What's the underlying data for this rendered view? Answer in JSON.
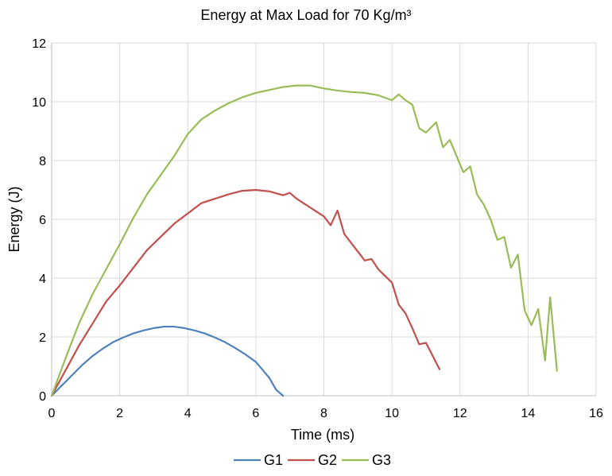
{
  "chart_data": {
    "type": "line",
    "title": "Energy at Max Load for 70 Kg/m³",
    "xlabel": "Time (ms)",
    "ylabel": "Energy (J)",
    "xlim": [
      0,
      16
    ],
    "ylim": [
      0,
      12
    ],
    "x_ticks": [
      0,
      2,
      4,
      6,
      8,
      10,
      12,
      14,
      16
    ],
    "y_ticks": [
      0,
      2,
      4,
      6,
      8,
      10,
      12
    ],
    "grid": true,
    "legend_position": "bottom",
    "series": [
      {
        "name": "G1",
        "color": "#4f81bd",
        "points": [
          [
            0.0,
            0.0
          ],
          [
            0.3,
            0.35
          ],
          [
            0.6,
            0.7
          ],
          [
            0.9,
            1.05
          ],
          [
            1.2,
            1.35
          ],
          [
            1.5,
            1.6
          ],
          [
            1.8,
            1.82
          ],
          [
            2.1,
            1.98
          ],
          [
            2.4,
            2.12
          ],
          [
            2.7,
            2.22
          ],
          [
            3.0,
            2.3
          ],
          [
            3.3,
            2.35
          ],
          [
            3.6,
            2.35
          ],
          [
            3.9,
            2.3
          ],
          [
            4.2,
            2.22
          ],
          [
            4.5,
            2.12
          ],
          [
            4.8,
            1.98
          ],
          [
            5.1,
            1.82
          ],
          [
            5.4,
            1.62
          ],
          [
            5.7,
            1.4
          ],
          [
            6.0,
            1.15
          ],
          [
            6.2,
            0.88
          ],
          [
            6.4,
            0.6
          ],
          [
            6.6,
            0.2
          ],
          [
            6.8,
            0.0
          ]
        ]
      },
      {
        "name": "G2",
        "color": "#c0504d",
        "points": [
          [
            0.0,
            0.0
          ],
          [
            0.4,
            0.85
          ],
          [
            0.8,
            1.7
          ],
          [
            1.2,
            2.45
          ],
          [
            1.6,
            3.2
          ],
          [
            2.0,
            3.75
          ],
          [
            2.4,
            4.35
          ],
          [
            2.8,
            4.95
          ],
          [
            3.2,
            5.4
          ],
          [
            3.6,
            5.85
          ],
          [
            4.0,
            6.2
          ],
          [
            4.4,
            6.55
          ],
          [
            4.8,
            6.7
          ],
          [
            5.2,
            6.85
          ],
          [
            5.6,
            6.97
          ],
          [
            6.0,
            7.0
          ],
          [
            6.4,
            6.95
          ],
          [
            6.8,
            6.82
          ],
          [
            7.0,
            6.9
          ],
          [
            7.2,
            6.7
          ],
          [
            7.6,
            6.4
          ],
          [
            8.0,
            6.1
          ],
          [
            8.2,
            5.8
          ],
          [
            8.4,
            6.3
          ],
          [
            8.6,
            5.5
          ],
          [
            9.0,
            4.9
          ],
          [
            9.2,
            4.6
          ],
          [
            9.4,
            4.65
          ],
          [
            9.6,
            4.3
          ],
          [
            10.0,
            3.85
          ],
          [
            10.2,
            3.1
          ],
          [
            10.4,
            2.8
          ],
          [
            10.6,
            2.3
          ],
          [
            10.8,
            1.75
          ],
          [
            11.0,
            1.8
          ],
          [
            11.4,
            0.9
          ]
        ]
      },
      {
        "name": "G3",
        "color": "#9bbb59",
        "points": [
          [
            0.0,
            0.0
          ],
          [
            0.4,
            1.25
          ],
          [
            0.8,
            2.45
          ],
          [
            1.2,
            3.45
          ],
          [
            1.6,
            4.3
          ],
          [
            2.0,
            5.15
          ],
          [
            2.4,
            6.05
          ],
          [
            2.8,
            6.85
          ],
          [
            3.2,
            7.5
          ],
          [
            3.6,
            8.15
          ],
          [
            4.0,
            8.9
          ],
          [
            4.4,
            9.4
          ],
          [
            4.8,
            9.7
          ],
          [
            5.2,
            9.95
          ],
          [
            5.6,
            10.15
          ],
          [
            6.0,
            10.3
          ],
          [
            6.4,
            10.4
          ],
          [
            6.8,
            10.5
          ],
          [
            7.2,
            10.55
          ],
          [
            7.6,
            10.55
          ],
          [
            8.0,
            10.45
          ],
          [
            8.4,
            10.38
          ],
          [
            8.8,
            10.33
          ],
          [
            9.2,
            10.3
          ],
          [
            9.6,
            10.22
          ],
          [
            10.0,
            10.05
          ],
          [
            10.2,
            10.25
          ],
          [
            10.4,
            10.05
          ],
          [
            10.6,
            9.9
          ],
          [
            10.8,
            9.1
          ],
          [
            11.0,
            8.95
          ],
          [
            11.3,
            9.3
          ],
          [
            11.5,
            8.45
          ],
          [
            11.7,
            8.7
          ],
          [
            11.9,
            8.15
          ],
          [
            12.1,
            7.6
          ],
          [
            12.3,
            7.8
          ],
          [
            12.5,
            6.85
          ],
          [
            12.7,
            6.5
          ],
          [
            12.9,
            6.0
          ],
          [
            13.1,
            5.3
          ],
          [
            13.3,
            5.4
          ],
          [
            13.5,
            4.35
          ],
          [
            13.7,
            4.8
          ],
          [
            13.9,
            2.9
          ],
          [
            14.1,
            2.4
          ],
          [
            14.3,
            2.95
          ],
          [
            14.5,
            1.2
          ],
          [
            14.65,
            3.35
          ],
          [
            14.85,
            0.85
          ]
        ]
      }
    ]
  }
}
